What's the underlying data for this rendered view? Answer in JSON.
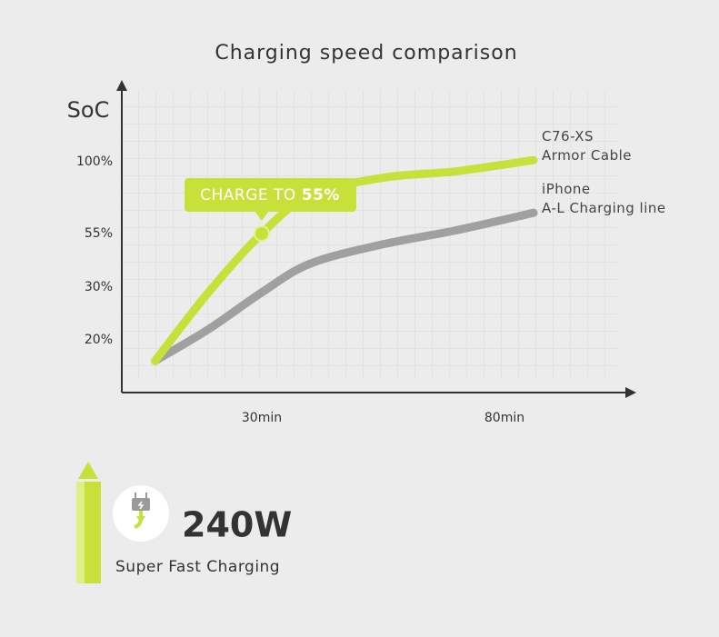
{
  "chart_data": {
    "type": "line",
    "title": "Charging speed comparison",
    "ylabel": "SoC",
    "x": [
      8,
      19,
      30,
      40,
      55,
      70,
      86
    ],
    "xlim": [
      0,
      100
    ],
    "xticks": [
      {
        "value": 30,
        "label": "30min"
      },
      {
        "value": 80,
        "label": "80min"
      }
    ],
    "ylim": [
      10,
      130
    ],
    "yticks": [
      {
        "value": 20,
        "label": "20%"
      },
      {
        "value": 30,
        "label": "30%"
      },
      {
        "value": 55,
        "label": "55%"
      },
      {
        "value": 100,
        "label": "100%"
      }
    ],
    "grid": true,
    "series": [
      {
        "name": "C76-XS\nArmor Cable",
        "color": "#c8e03a",
        "values": [
          16,
          29,
          55,
          79,
          90,
          94,
          101
        ]
      },
      {
        "name": "iPhone\nA-L Charging line",
        "color": "#a0a0a0",
        "values": [
          16,
          22,
          29,
          41,
          50,
          57,
          68
        ]
      }
    ],
    "callout": {
      "text": "CHARGE TO",
      "value_text": "55%",
      "series": 0,
      "point": 2
    }
  },
  "power": "240W",
  "tagline": "Super Fast Charging"
}
